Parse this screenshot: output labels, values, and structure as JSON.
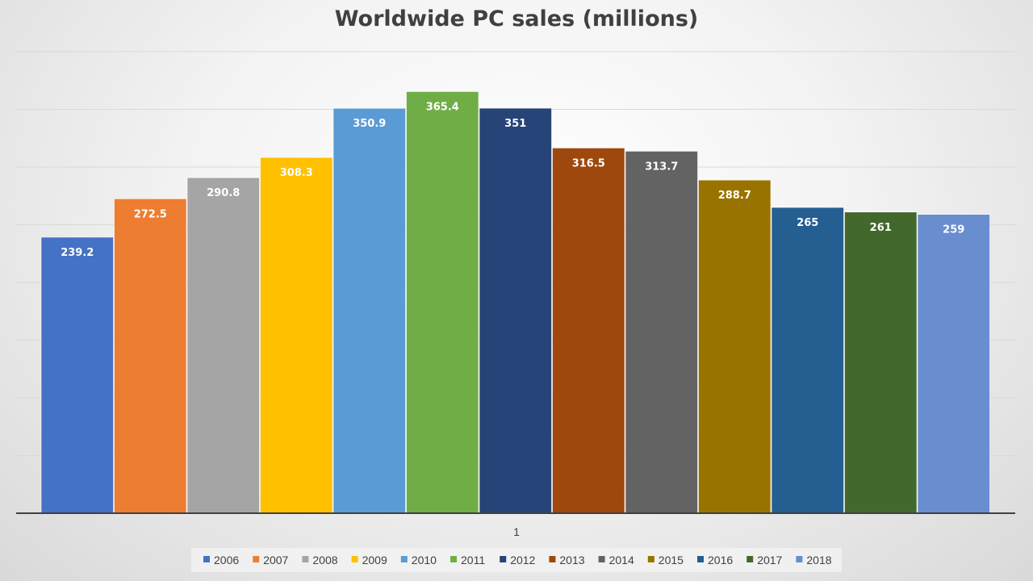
{
  "chart_data": {
    "type": "bar",
    "title": "Worldwide PC sales (millions)",
    "categories": [
      "1"
    ],
    "series": [
      {
        "name": "2006",
        "values": [
          239.2
        ],
        "color": "#4472C4"
      },
      {
        "name": "2007",
        "values": [
          272.5
        ],
        "color": "#ED7D31"
      },
      {
        "name": "2008",
        "values": [
          290.8
        ],
        "color": "#A5A5A5"
      },
      {
        "name": "2009",
        "values": [
          308.3
        ],
        "color": "#FFC000"
      },
      {
        "name": "2010",
        "values": [
          350.9
        ],
        "color": "#5B9BD5"
      },
      {
        "name": "2011",
        "values": [
          365.4
        ],
        "color": "#70AD47"
      },
      {
        "name": "2012",
        "values": [
          351
        ],
        "color": "#264478"
      },
      {
        "name": "2013",
        "values": [
          316.5
        ],
        "color": "#9E480E"
      },
      {
        "name": "2014",
        "values": [
          313.7
        ],
        "color": "#636363"
      },
      {
        "name": "2015",
        "values": [
          288.7
        ],
        "color": "#997300"
      },
      {
        "name": "2016",
        "values": [
          265
        ],
        "color": "#255E91"
      },
      {
        "name": "2017",
        "values": [
          261
        ],
        "color": "#43682B"
      },
      {
        "name": "2018",
        "values": [
          259
        ],
        "color": "#698ED0"
      }
    ],
    "ylim": [
      0,
      400
    ],
    "grid": true,
    "legend": "bottom",
    "data_labels": true
  }
}
